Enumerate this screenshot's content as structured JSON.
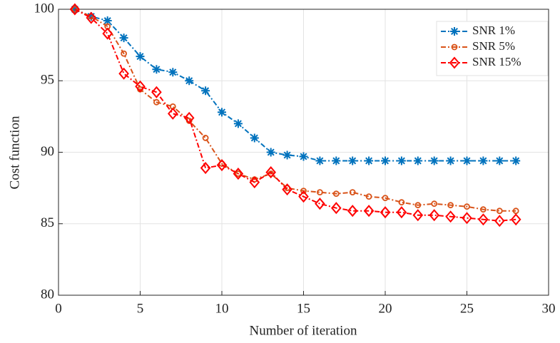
{
  "chart_data": {
    "type": "line",
    "xlabel": "Number of iteration",
    "ylabel": "Cost function",
    "x": [
      1,
      2,
      3,
      4,
      5,
      6,
      7,
      8,
      9,
      10,
      11,
      12,
      13,
      14,
      15,
      16,
      17,
      18,
      19,
      20,
      21,
      22,
      23,
      24,
      25,
      26,
      27,
      28
    ],
    "series": [
      {
        "name": "SNR 1%",
        "color": "#0072bd",
        "marker": "asterisk",
        "values": [
          100,
          99.5,
          99.2,
          98.0,
          96.7,
          95.8,
          95.6,
          95.0,
          94.3,
          92.8,
          92.0,
          91.0,
          90.0,
          89.8,
          89.7,
          89.4,
          89.4,
          89.4,
          89.4,
          89.4,
          89.4,
          89.4,
          89.4,
          89.4,
          89.4,
          89.4,
          89.4,
          89.4
        ]
      },
      {
        "name": "SNR 5%",
        "color": "#d95319",
        "marker": "circle",
        "values": [
          100,
          99.5,
          98.8,
          96.9,
          94.4,
          93.5,
          93.2,
          92.2,
          91.0,
          89.2,
          88.5,
          88.1,
          88.5,
          87.5,
          87.3,
          87.2,
          87.1,
          87.2,
          86.9,
          86.8,
          86.5,
          86.3,
          86.4,
          86.3,
          86.2,
          86.0,
          85.9,
          85.9
        ]
      },
      {
        "name": "SNR 15%",
        "color": "#ff0000",
        "marker": "diamond",
        "values": [
          100,
          99.4,
          98.3,
          95.5,
          94.6,
          94.2,
          92.7,
          92.4,
          88.9,
          89.1,
          88.5,
          87.9,
          88.6,
          87.4,
          86.9,
          86.4,
          86.1,
          85.9,
          85.9,
          85.8,
          85.8,
          85.6,
          85.6,
          85.5,
          85.4,
          85.3,
          85.2,
          85.3
        ]
      }
    ],
    "xlim": [
      0,
      30
    ],
    "xticks": [
      0,
      5,
      10,
      15,
      20,
      25,
      30
    ],
    "ylim": [
      80,
      100
    ],
    "yticks": [
      80,
      85,
      90,
      95,
      100
    ],
    "grid": true,
    "legend": "northeast"
  }
}
